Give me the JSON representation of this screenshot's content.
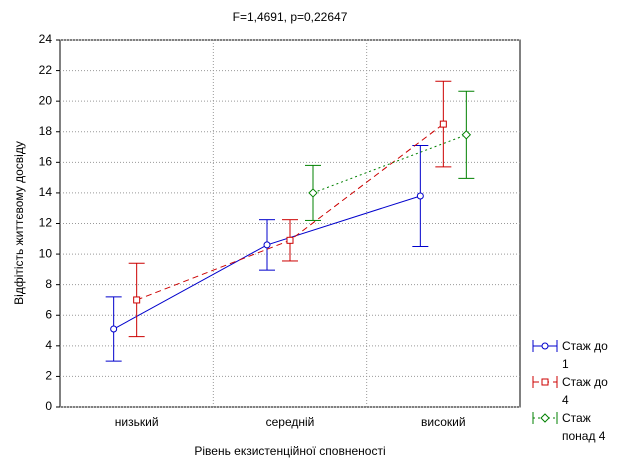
{
  "chart_data": {
    "type": "line",
    "title": "F=1,4691, p=0,22647",
    "x_label": "Рівень екзистенційної сповненості",
    "y_label": "Відфітість життєвому досвіду",
    "categories": [
      "низький",
      "середній",
      "високий"
    ],
    "series": [
      {
        "name": "Стаж до 1",
        "color": "#0000cc",
        "values": [
          5.1,
          10.6,
          13.8
        ],
        "errors": [
          2.1,
          1.65,
          3.3
        ]
      },
      {
        "name": "Стаж до 4",
        "color": "#cc0000",
        "values": [
          7.0,
          10.9,
          18.5
        ],
        "errors": [
          2.4,
          1.35,
          2.8
        ]
      },
      {
        "name": "Стаж понад 4",
        "color": "#008000",
        "values": [
          null,
          14.0,
          17.8
        ],
        "errors": [
          null,
          1.8,
          2.85
        ]
      }
    ],
    "ylim": [
      0,
      24
    ],
    "yticks": [
      0,
      2,
      4,
      6,
      8,
      10,
      12,
      14,
      16,
      18,
      20,
      22,
      24
    ],
    "grid": true
  }
}
